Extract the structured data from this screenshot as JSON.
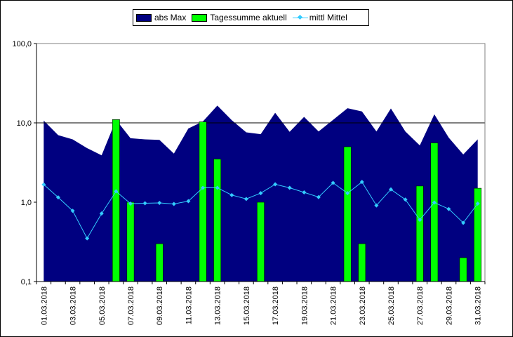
{
  "chart_data": {
    "type": "bar",
    "y_scale": "log",
    "ylim": [
      0.1,
      100
    ],
    "y_ticks": [
      {
        "value": 0.1,
        "label": "0,1"
      },
      {
        "value": 1,
        "label": "1,0"
      },
      {
        "value": 10,
        "label": "10,0"
      },
      {
        "value": 100,
        "label": "100,0"
      }
    ],
    "gridlines": [
      10
    ],
    "x_tick_labels": [
      "01.03.2018",
      "03.03.2018",
      "05.03.2018",
      "07.03.2018",
      "09.03.2018",
      "11.03.2018",
      "13.03.2018",
      "15.03.2018",
      "17.03.2018",
      "19.03.2018",
      "21.03.2018",
      "23.03.2018",
      "25.03.2018",
      "27.03.2018",
      "29.03.2018",
      "31.03.2018"
    ],
    "categories": [
      "01.03.2018",
      "02.03.2018",
      "03.03.2018",
      "04.03.2018",
      "05.03.2018",
      "06.03.2018",
      "07.03.2018",
      "08.03.2018",
      "09.03.2018",
      "10.03.2018",
      "11.03.2018",
      "12.03.2018",
      "13.03.2018",
      "14.03.2018",
      "15.03.2018",
      "16.03.2018",
      "17.03.2018",
      "18.03.2018",
      "19.03.2018",
      "20.03.2018",
      "21.03.2018",
      "22.03.2018",
      "23.03.2018",
      "24.03.2018",
      "25.03.2018",
      "26.03.2018",
      "27.03.2018",
      "28.03.2018",
      "29.03.2018",
      "30.03.2018",
      "31.03.2018"
    ],
    "legend_position": "top",
    "series": [
      {
        "name": "abs Max",
        "type": "area",
        "color": "#000080",
        "values": [
          10.7,
          7.0,
          6.2,
          4.8,
          3.9,
          10.9,
          6.4,
          6.2,
          6.1,
          4.1,
          8.5,
          10.4,
          16.5,
          10.8,
          7.6,
          7.2,
          13.4,
          7.7,
          11.9,
          7.8,
          10.9,
          15.3,
          13.9,
          7.8,
          15.2,
          7.8,
          5.2,
          12.8,
          6.5,
          4.0,
          6.2
        ]
      },
      {
        "name": "Tagessumme aktuell",
        "type": "bar",
        "color": "#00ff00",
        "values": [
          0,
          0,
          0,
          0,
          0,
          11.0,
          1.0,
          0,
          0.3,
          0,
          0,
          10.3,
          3.5,
          0,
          0,
          1.0,
          0,
          0,
          0,
          0,
          0,
          5.0,
          0.3,
          0,
          0,
          0,
          1.6,
          5.6,
          0,
          0.2,
          1.5
        ]
      },
      {
        "name": "mittl Mittel",
        "type": "line",
        "color": "#33ccff",
        "values": [
          1.67,
          1.15,
          0.78,
          0.35,
          0.72,
          1.37,
          0.96,
          0.97,
          0.98,
          0.95,
          1.03,
          1.52,
          1.52,
          1.23,
          1.1,
          1.3,
          1.68,
          1.52,
          1.33,
          1.16,
          1.75,
          1.3,
          1.8,
          0.91,
          1.45,
          1.08,
          0.6,
          0.99,
          0.82,
          0.55,
          0.96
        ]
      }
    ]
  }
}
